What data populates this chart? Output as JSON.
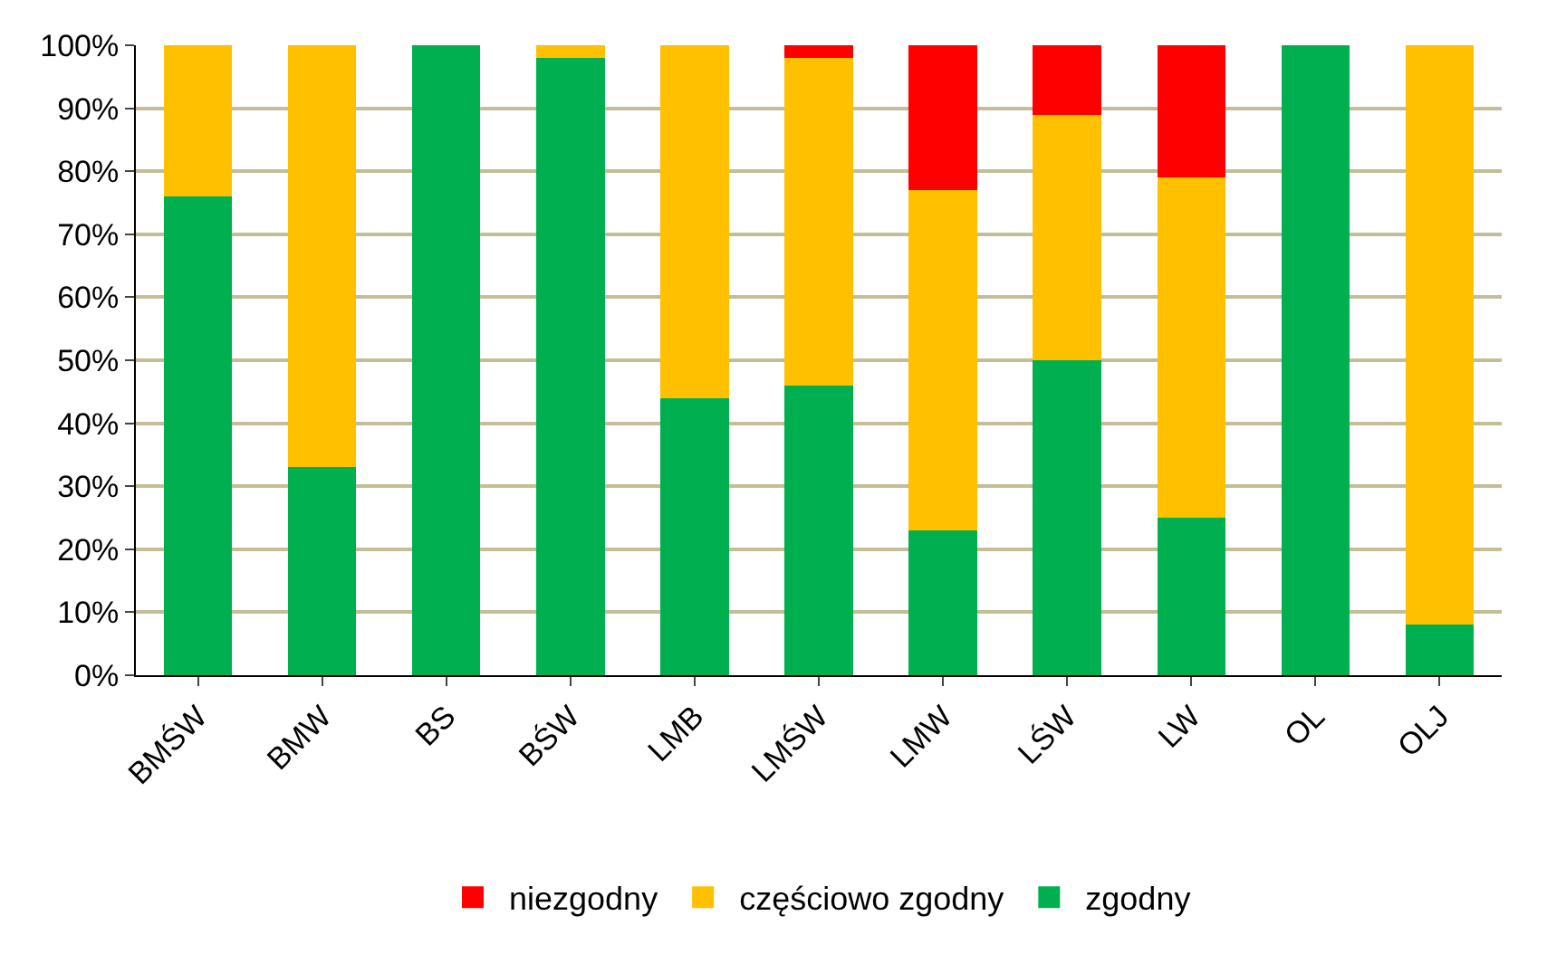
{
  "chart_data": {
    "type": "bar",
    "stacked": true,
    "categories": [
      "BMŚW",
      "BMW",
      "BS",
      "BŚW",
      "LMB",
      "LMŚW",
      "LMW",
      "LŚW",
      "LW",
      "OL",
      "OLJ"
    ],
    "series": [
      {
        "name": "zgodny",
        "color": "#00b050",
        "values": [
          76,
          33,
          100,
          98,
          44,
          46,
          23,
          50,
          25,
          100,
          8
        ]
      },
      {
        "name": "częściowo zgodny",
        "color": "#ffc000",
        "values": [
          24,
          67,
          0,
          2,
          56,
          52,
          54,
          39,
          54,
          0,
          92
        ]
      },
      {
        "name": "niezgodny",
        "color": "#ff0000",
        "values": [
          0,
          0,
          0,
          0,
          0,
          2,
          23,
          11,
          21,
          0,
          0
        ]
      }
    ],
    "ylim": [
      0,
      100
    ],
    "yticks": [
      {
        "value": 0,
        "label": "0%"
      },
      {
        "value": 10,
        "label": "10%"
      },
      {
        "value": 20,
        "label": "20%"
      },
      {
        "value": 30,
        "label": "30%"
      },
      {
        "value": 40,
        "label": "40%"
      },
      {
        "value": 50,
        "label": "50%"
      },
      {
        "value": 60,
        "label": "60%"
      },
      {
        "value": 70,
        "label": "70%"
      },
      {
        "value": 80,
        "label": "80%"
      },
      {
        "value": 90,
        "label": "90%"
      },
      {
        "value": 100,
        "label": "100%"
      }
    ],
    "grid": "y",
    "legend": "bottom"
  }
}
